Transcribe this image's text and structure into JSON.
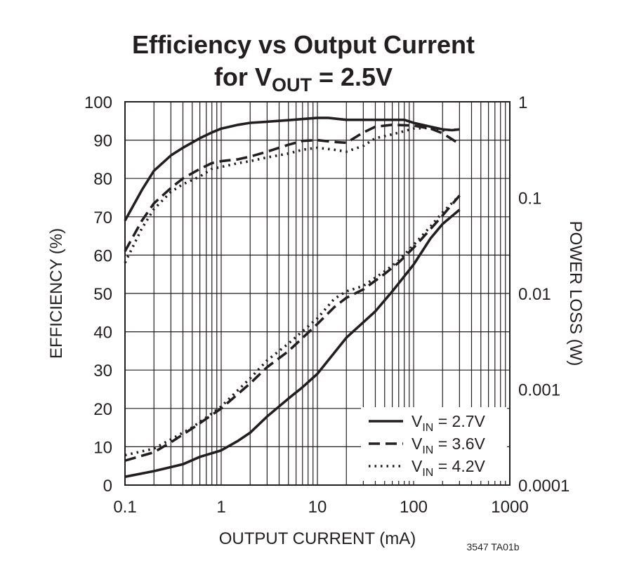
{
  "chart_data": {
    "type": "line",
    "title": "Efficiency vs Output Current",
    "subtitle": {
      "prefix": "for V",
      "sub": "OUT",
      "suffix": " = 2.5V"
    },
    "xlabel": "OUTPUT CURRENT (mA)",
    "ylabel": "EFFICIENCY (%)",
    "y2label": "POWER LOSS (W)",
    "x_scale": "log",
    "xlim": [
      0.1,
      1000
    ],
    "ylim": [
      0,
      100
    ],
    "y2_scale": "log",
    "y2lim": [
      0.0001,
      1
    ],
    "grid": true,
    "x_ticks": [
      {
        "value": 0.1,
        "label": "0.1"
      },
      {
        "value": 1,
        "label": "1"
      },
      {
        "value": 10,
        "label": "10"
      },
      {
        "value": 100,
        "label": "100"
      },
      {
        "value": 1000,
        "label": "1000"
      }
    ],
    "y_ticks": [
      {
        "value": 0,
        "label": "0"
      },
      {
        "value": 10,
        "label": "10"
      },
      {
        "value": 20,
        "label": "20"
      },
      {
        "value": 30,
        "label": "30"
      },
      {
        "value": 40,
        "label": "40"
      },
      {
        "value": 50,
        "label": "50"
      },
      {
        "value": 60,
        "label": "60"
      },
      {
        "value": 70,
        "label": "70"
      },
      {
        "value": 80,
        "label": "80"
      },
      {
        "value": 90,
        "label": "90"
      },
      {
        "value": 100,
        "label": "100"
      }
    ],
    "y2_ticks": [
      {
        "value": 1,
        "label": "1"
      },
      {
        "value": 0.1,
        "label": "0.1"
      },
      {
        "value": 0.01,
        "label": "0.01"
      },
      {
        "value": 0.001,
        "label": "0.001"
      },
      {
        "value": 0.0001,
        "label": "0.0001"
      }
    ],
    "legend_position": "bottom-right",
    "series": [
      {
        "name": "VIN = 2.7V",
        "legend_prefix": "V",
        "legend_sub": "IN",
        "legend_suffix": " = 2.7V",
        "style": "solid",
        "efficiency": [
          [
            0.1,
            69
          ],
          [
            0.15,
            77
          ],
          [
            0.2,
            82
          ],
          [
            0.3,
            86
          ],
          [
            0.4,
            88
          ],
          [
            0.6,
            90.5
          ],
          [
            0.8,
            92
          ],
          [
            1,
            93
          ],
          [
            1.5,
            94
          ],
          [
            2,
            94.5
          ],
          [
            3,
            94.8
          ],
          [
            5,
            95.2
          ],
          [
            7,
            95.5
          ],
          [
            10,
            95.8
          ],
          [
            13,
            95.8
          ],
          [
            20,
            95.3
          ],
          [
            40,
            95.3
          ],
          [
            80,
            95.3
          ],
          [
            100,
            94.5
          ],
          [
            150,
            93.5
          ],
          [
            200,
            92.8
          ],
          [
            250,
            92.6
          ],
          [
            300,
            92.8
          ]
        ],
        "power_loss": [
          [
            0.1,
            0.000122
          ],
          [
            0.2,
            0.00014
          ],
          [
            0.4,
            0.000165
          ],
          [
            0.6,
            0.000197
          ],
          [
            1,
            0.00023
          ],
          [
            1.5,
            0.00029
          ],
          [
            2,
            0.000352
          ],
          [
            3,
            0.00052
          ],
          [
            5,
            0.0008
          ],
          [
            7,
            0.00105
          ],
          [
            10,
            0.00145
          ],
          [
            20,
            0.00345
          ],
          [
            40,
            0.0065
          ],
          [
            60,
            0.0105
          ],
          [
            100,
            0.02
          ],
          [
            150,
            0.0375
          ],
          [
            200,
            0.053
          ],
          [
            300,
            0.0747
          ]
        ]
      },
      {
        "name": "VIN = 3.6V",
        "legend_prefix": "V",
        "legend_sub": "IN",
        "legend_suffix": " = 3.6V",
        "style": "dashed",
        "efficiency": [
          [
            0.1,
            61
          ],
          [
            0.15,
            69
          ],
          [
            0.2,
            73.5
          ],
          [
            0.3,
            77.5
          ],
          [
            0.4,
            80
          ],
          [
            0.6,
            82.5
          ],
          [
            0.8,
            84
          ],
          [
            1,
            84.5
          ],
          [
            1.5,
            85
          ],
          [
            2,
            85.7
          ],
          [
            3,
            87
          ],
          [
            5,
            88.8
          ],
          [
            7,
            89.8
          ],
          [
            10,
            90
          ],
          [
            15,
            89.5
          ],
          [
            20,
            89.3
          ],
          [
            30,
            92
          ],
          [
            40,
            93.5
          ],
          [
            60,
            94
          ],
          [
            100,
            93.8
          ],
          [
            150,
            93
          ],
          [
            200,
            91.8
          ],
          [
            300,
            89
          ]
        ],
        "power_loss": [
          [
            0.1,
            0.00018
          ],
          [
            0.2,
            0.00022
          ],
          [
            0.3,
            0.00028
          ],
          [
            0.5,
            0.00039
          ],
          [
            0.8,
            0.00054
          ],
          [
            1,
            0.00063
          ],
          [
            2,
            0.00115
          ],
          [
            3,
            0.0017
          ],
          [
            5,
            0.0025
          ],
          [
            10,
            0.0048
          ],
          [
            15,
            0.0072
          ],
          [
            20,
            0.009
          ],
          [
            30,
            0.011
          ],
          [
            50,
            0.016
          ],
          [
            70,
            0.021
          ],
          [
            100,
            0.03
          ],
          [
            150,
            0.047
          ],
          [
            200,
            0.065
          ],
          [
            300,
            0.105
          ]
        ]
      },
      {
        "name": "VIN = 4.2V",
        "legend_prefix": "V",
        "legend_sub": "IN",
        "legend_suffix": " = 4.2V",
        "style": "dotted",
        "efficiency": [
          [
            0.1,
            58
          ],
          [
            0.15,
            67
          ],
          [
            0.2,
            72
          ],
          [
            0.3,
            76.5
          ],
          [
            0.4,
            78.5
          ],
          [
            0.6,
            80.5
          ],
          [
            0.8,
            82.5
          ],
          [
            1,
            83
          ],
          [
            1.5,
            84
          ],
          [
            2,
            84.5
          ],
          [
            3,
            85.5
          ],
          [
            5,
            86.5
          ],
          [
            7,
            87.5
          ],
          [
            10,
            88
          ],
          [
            15,
            87.5
          ],
          [
            20,
            87
          ],
          [
            30,
            88.5
          ],
          [
            40,
            90.5
          ],
          [
            60,
            91.5
          ],
          [
            100,
            93
          ],
          [
            150,
            93.2
          ],
          [
            200,
            92.5
          ],
          [
            300,
            92.8
          ]
        ],
        "power_loss": [
          [
            0.1,
            0.000205
          ],
          [
            0.2,
            0.00024
          ],
          [
            0.3,
            0.0003
          ],
          [
            0.5,
            0.0004
          ],
          [
            0.8,
            0.00056
          ],
          [
            1,
            0.00066
          ],
          [
            2,
            0.0013
          ],
          [
            3,
            0.002
          ],
          [
            5,
            0.003
          ],
          [
            10,
            0.0055
          ],
          [
            15,
            0.0088
          ],
          [
            20,
            0.0105
          ],
          [
            30,
            0.012
          ],
          [
            50,
            0.017
          ],
          [
            70,
            0.022
          ],
          [
            100,
            0.032
          ],
          [
            150,
            0.05
          ],
          [
            200,
            0.07
          ],
          [
            300,
            0.105
          ]
        ]
      }
    ],
    "figure_id": "3547 TA01b"
  }
}
